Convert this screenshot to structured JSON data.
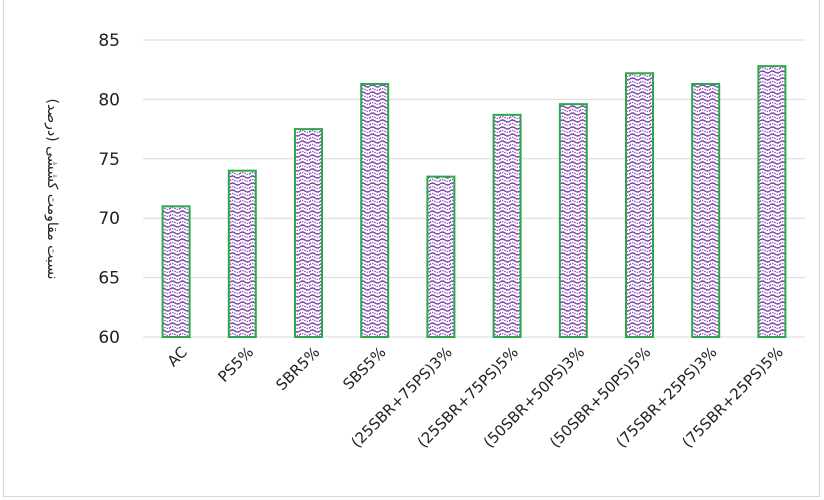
{
  "chart_data": {
    "type": "bar",
    "title": "",
    "xlabel": "",
    "ylabel": "نسبت مقاومت کششی (درصد)",
    "ylim": [
      60,
      85
    ],
    "yticks": [
      60,
      65,
      70,
      75,
      80,
      85
    ],
    "grid": true,
    "legend": "none",
    "categories": [
      "AC",
      "PS5%",
      "SBR5%",
      "SBS5%",
      "(25SBR+75PS)3%",
      "(25SBR+75PS)5%",
      "(50SBR+50PS)3%",
      "(50SBR+50PS)5%",
      "(75SBR+25PS)3%",
      "(75SBR+25PS)5%"
    ],
    "values": [
      71.0,
      74.0,
      77.5,
      81.3,
      73.5,
      78.7,
      79.6,
      82.2,
      81.3,
      82.8
    ],
    "colors": {
      "bar_border": "#2aa84a",
      "bar_pattern": "#7b3fa8",
      "grid": "#d9d9d9"
    }
  }
}
